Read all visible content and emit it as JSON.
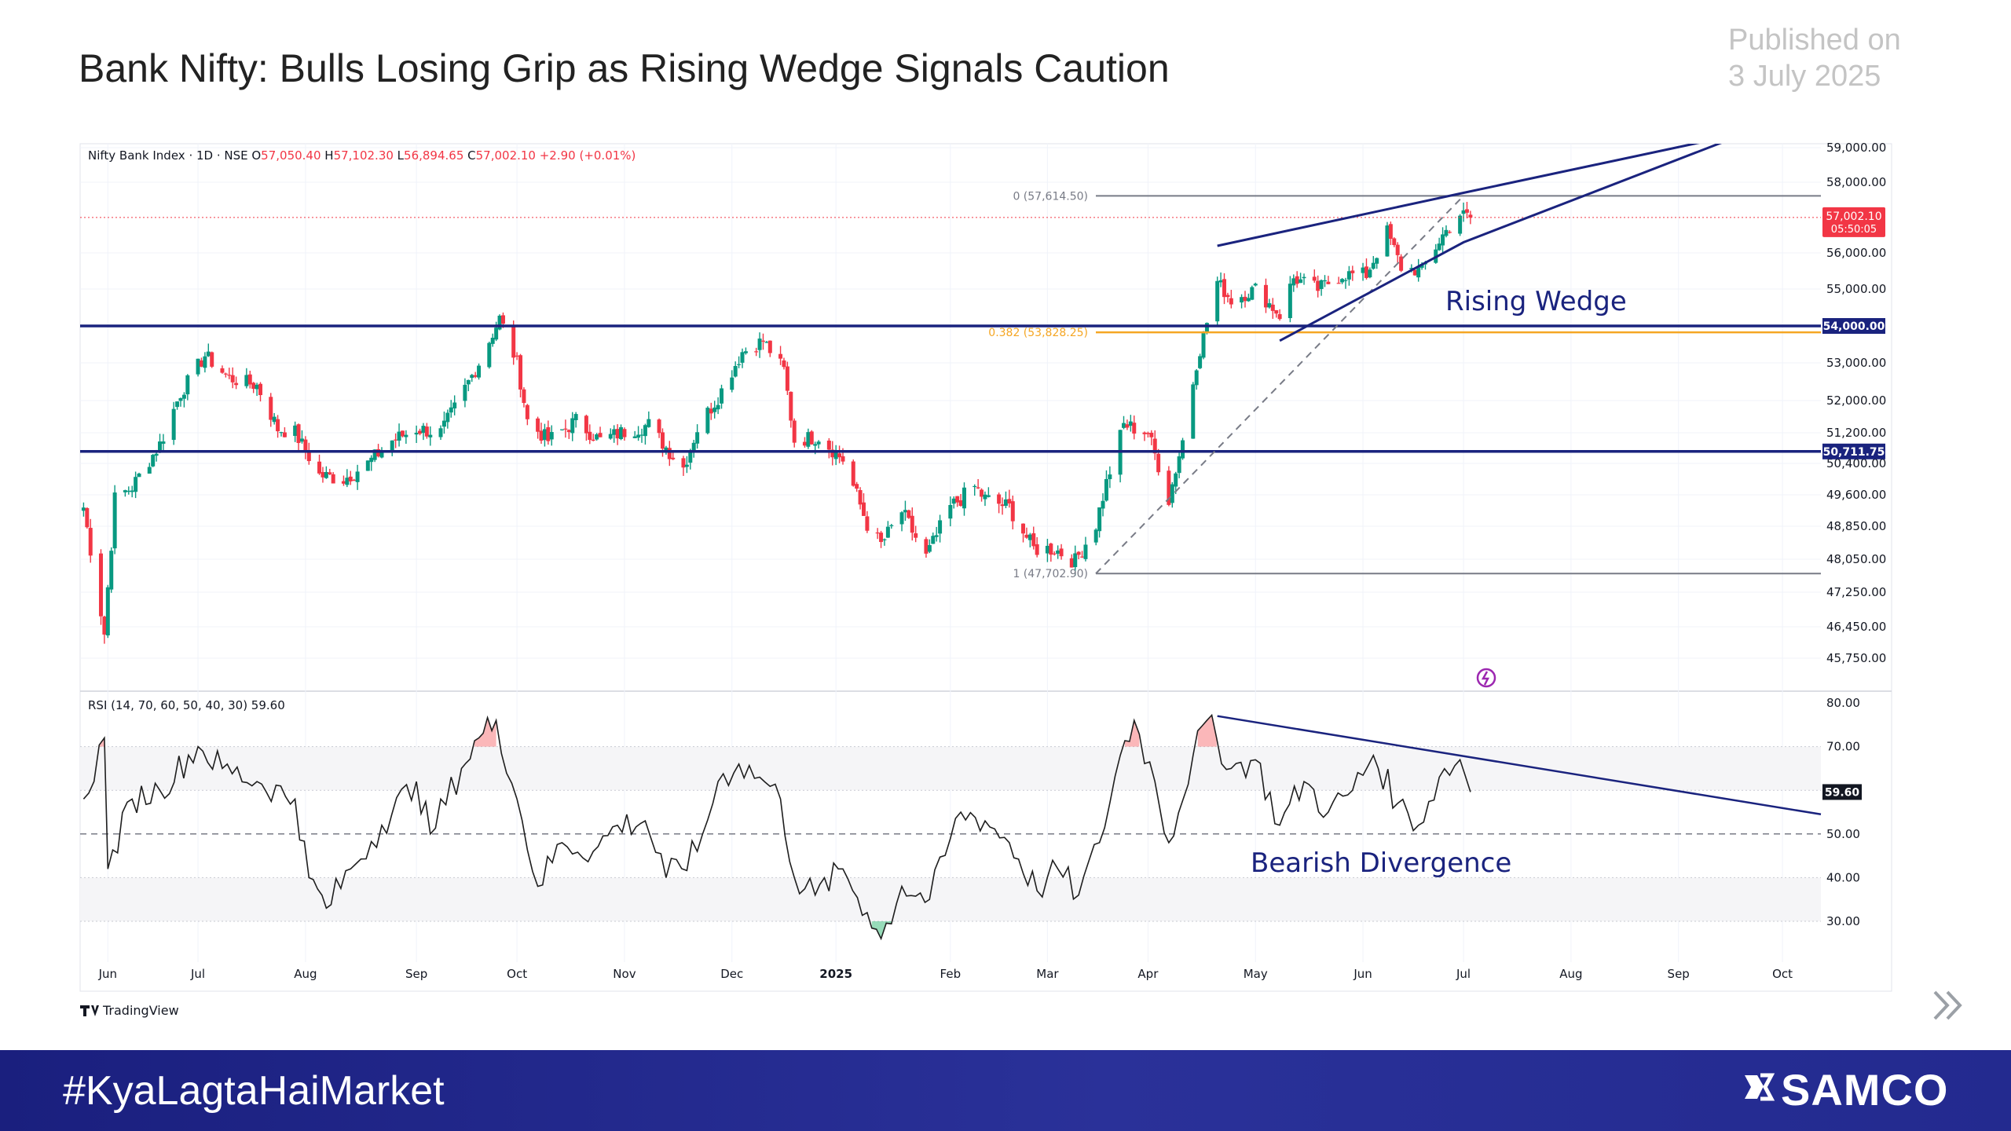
{
  "header": {
    "title": "Bank Nifty: Bulls Losing Grip as Rising Wedge Signals Caution",
    "published_label": "Published  on",
    "published_date": "3 July 2025"
  },
  "footer": {
    "hashtag": "#KyaLagtaHaiMarket",
    "brand": "SAMCO"
  },
  "colors": {
    "up": "#089981",
    "down": "#f23645",
    "navy": "#1a237e",
    "fib_orange": "#f5a623",
    "fib_gray": "#787b86",
    "rsi_line": "#1e1e1e"
  },
  "chart_data": [
    {
      "type": "candlestick",
      "title": "Nifty Bank Index · 1D · NSE",
      "ohlc_header": {
        "open_label": "O",
        "open": "57,050.40",
        "high_label": "H",
        "high": "57,102.30",
        "low_label": "L",
        "low": "56,894.65",
        "close_label": "C",
        "close": "57,002.10",
        "change": "+2.90 (+0.01%)"
      },
      "y_ticks": [
        {
          "value": 59000,
          "label": "59,000.00"
        },
        {
          "value": 58000,
          "label": "58,000.00"
        },
        {
          "value": 56000,
          "label": "56,000.00"
        },
        {
          "value": 55000,
          "label": "55,000.00"
        },
        {
          "value": 53000,
          "label": "53,000.00"
        },
        {
          "value": 52000,
          "label": "52,000.00"
        },
        {
          "value": 51200,
          "label": "51,200.00"
        },
        {
          "value": 50400,
          "label": "50,400.00"
        },
        {
          "value": 49600,
          "label": "49,600.00"
        },
        {
          "value": 48850,
          "label": "48,850.00"
        },
        {
          "value": 48050,
          "label": "48,050.00"
        },
        {
          "value": 47250,
          "label": "47,250.00"
        },
        {
          "value": 46450,
          "label": "46,450.00"
        },
        {
          "value": 45750,
          "label": "45,750.00"
        }
      ],
      "x_ticks": [
        "Jun",
        "Jul",
        "Aug",
        "Sep",
        "Oct",
        "Nov",
        "Dec",
        "2025",
        "Feb",
        "Mar",
        "Apr",
        "May",
        "Jun",
        "Jul",
        "Aug",
        "Sep",
        "Oct"
      ],
      "price_path": [
        [
          "2024-05-29",
          49300
        ],
        [
          "2024-06-04",
          46300
        ],
        [
          "2024-06-07",
          49500
        ],
        [
          "2024-06-12",
          49800
        ],
        [
          "2024-06-20",
          50900
        ],
        [
          "2024-06-26",
          52200
        ],
        [
          "2024-07-03",
          53200
        ],
        [
          "2024-07-10",
          52600
        ],
        [
          "2024-07-18",
          52400
        ],
        [
          "2024-07-24",
          51300
        ],
        [
          "2024-07-29",
          51200
        ],
        [
          "2024-08-05",
          50100
        ],
        [
          "2024-08-12",
          50000
        ],
        [
          "2024-08-19",
          50400
        ],
        [
          "2024-08-26",
          51000
        ],
        [
          "2024-09-02",
          51300
        ],
        [
          "2024-09-09",
          51200
        ],
        [
          "2024-09-13",
          51800
        ],
        [
          "2024-09-20",
          53000
        ],
        [
          "2024-09-26",
          54200
        ],
        [
          "2024-10-01",
          53000
        ],
        [
          "2024-10-04",
          51500
        ],
        [
          "2024-10-10",
          51000
        ],
        [
          "2024-10-18",
          51500
        ],
        [
          "2024-10-25",
          51000
        ],
        [
          "2024-10-31",
          51200
        ],
        [
          "2024-11-08",
          51400
        ],
        [
          "2024-11-14",
          50700
        ],
        [
          "2024-11-18",
          50300
        ],
        [
          "2024-11-22",
          51300
        ],
        [
          "2024-11-28",
          52100
        ],
        [
          "2024-12-05",
          53300
        ],
        [
          "2024-12-11",
          53600
        ],
        [
          "2024-12-17",
          52800
        ],
        [
          "2024-12-20",
          51000
        ],
        [
          "2024-12-27",
          51100
        ],
        [
          "2025-01-03",
          50500
        ],
        [
          "2025-01-10",
          48900
        ],
        [
          "2025-01-14",
          48400
        ],
        [
          "2025-01-20",
          49200
        ],
        [
          "2025-01-27",
          48100
        ],
        [
          "2025-02-03",
          49300
        ],
        [
          "2025-02-10",
          49800
        ],
        [
          "2025-02-13",
          49500
        ],
        [
          "2025-02-20",
          49300
        ],
        [
          "2025-02-27",
          48300
        ],
        [
          "2025-03-05",
          48300
        ],
        [
          "2025-03-11",
          48000
        ],
        [
          "2025-03-17",
          48900
        ],
        [
          "2025-03-20",
          49900
        ],
        [
          "2025-03-25",
          51400
        ],
        [
          "2025-04-01",
          51200
        ],
        [
          "2025-04-07",
          49500
        ],
        [
          "2025-04-11",
          51000
        ],
        [
          "2025-04-15",
          53000
        ],
        [
          "2025-04-21",
          55200
        ],
        [
          "2025-04-25",
          54700
        ],
        [
          "2025-05-02",
          55000
        ],
        [
          "2025-05-09",
          54300
        ],
        [
          "2025-05-13",
          55300
        ],
        [
          "2025-05-20",
          55000
        ],
        [
          "2025-05-27",
          55400
        ],
        [
          "2025-06-03",
          55400
        ],
        [
          "2025-06-09",
          56600
        ],
        [
          "2025-06-13",
          55600
        ],
        [
          "2025-06-19",
          55500
        ],
        [
          "2025-06-25",
          56500
        ],
        [
          "2025-06-30",
          57100
        ],
        [
          "2025-07-03",
          57002
        ]
      ],
      "last_price_label": "57,002.10",
      "countdown_label": "05:50:05",
      "horizontal_levels": [
        {
          "value": 54000,
          "label": "54,000.00"
        },
        {
          "value": 50711.75,
          "label": "50,711.75"
        }
      ],
      "fibonacci": [
        {
          "ratio": "0",
          "value": 57614.5,
          "label": "0 (57,614.50)"
        },
        {
          "ratio": "0.382",
          "value": 53828.25,
          "label": "0.382 (53,828.25)"
        },
        {
          "ratio": "1",
          "value": 47702.9,
          "label": "1 (47,702.90)"
        }
      ],
      "wedge": {
        "upper": [
          [
            "2025-04-21",
            56200
          ],
          [
            "2025-07-01",
            57700
          ],
          [
            "2025-10-03",
            59700
          ]
        ],
        "lower": [
          [
            "2025-05-09",
            53600
          ],
          [
            "2025-07-01",
            56300
          ],
          [
            "2025-09-20",
            59400
          ]
        ],
        "annotation": "Rising Wedge"
      }
    },
    {
      "type": "line",
      "title": "RSI (14, 70, 60, 50, 40, 30)",
      "current_value": "59.60",
      "ylim": [
        25,
        82
      ],
      "y_ticks": [
        {
          "value": 80,
          "label": "80.00"
        },
        {
          "value": 70,
          "label": "70.00"
        },
        {
          "value": 50,
          "label": "50.00"
        },
        {
          "value": 40,
          "label": "40.00"
        },
        {
          "value": 30,
          "label": "30.00"
        }
      ],
      "bands": {
        "overbought": 70,
        "upper_mid": 60,
        "mid": 50,
        "lower_mid": 40,
        "oversold": 30
      },
      "series_path": [
        [
          "2024-05-29",
          58
        ],
        [
          "2024-06-04",
          72
        ],
        [
          "2024-06-05",
          42
        ],
        [
          "2024-06-12",
          58
        ],
        [
          "2024-06-20",
          60
        ],
        [
          "2024-07-01",
          70
        ],
        [
          "2024-07-08",
          65
        ],
        [
          "2024-07-18",
          62
        ],
        [
          "2024-07-29",
          58
        ],
        [
          "2024-08-02",
          40
        ],
        [
          "2024-08-07",
          33
        ],
        [
          "2024-08-14",
          42
        ],
        [
          "2024-08-23",
          52
        ],
        [
          "2024-09-02",
          62
        ],
        [
          "2024-09-06",
          50
        ],
        [
          "2024-09-15",
          65
        ],
        [
          "2024-09-20",
          72
        ],
        [
          "2024-09-25",
          76
        ],
        [
          "2024-10-01",
          58
        ],
        [
          "2024-10-07",
          38
        ],
        [
          "2024-10-14",
          48
        ],
        [
          "2024-10-23",
          46
        ],
        [
          "2024-10-30",
          52
        ],
        [
          "2024-11-07",
          53
        ],
        [
          "2024-11-13",
          40
        ],
        [
          "2024-11-22",
          46
        ],
        [
          "2024-11-28",
          62
        ],
        [
          "2024-12-04",
          66
        ],
        [
          "2024-12-10",
          63
        ],
        [
          "2024-12-16",
          58
        ],
        [
          "2024-12-20",
          40
        ],
        [
          "2024-12-26",
          36
        ],
        [
          "2025-01-03",
          42
        ],
        [
          "2025-01-10",
          32
        ],
        [
          "2025-01-14",
          26
        ],
        [
          "2025-01-20",
          38
        ],
        [
          "2025-01-28",
          35
        ],
        [
          "2025-02-06",
          55
        ],
        [
          "2025-02-13",
          53
        ],
        [
          "2025-02-20",
          48
        ],
        [
          "2025-02-28",
          37
        ],
        [
          "2025-03-06",
          42
        ],
        [
          "2025-03-12",
          36
        ],
        [
          "2025-03-18",
          48
        ],
        [
          "2025-03-24",
          68
        ],
        [
          "2025-03-28",
          76
        ],
        [
          "2025-04-03",
          62
        ],
        [
          "2025-04-07",
          48
        ],
        [
          "2025-04-14",
          68
        ],
        [
          "2025-04-18",
          76
        ],
        [
          "2025-04-25",
          65
        ],
        [
          "2025-05-02",
          67
        ],
        [
          "2025-05-09",
          52
        ],
        [
          "2025-05-16",
          62
        ],
        [
          "2025-05-23",
          55
        ],
        [
          "2025-05-30",
          60
        ],
        [
          "2025-06-05",
          68
        ],
        [
          "2025-06-12",
          57
        ],
        [
          "2025-06-18",
          52
        ],
        [
          "2025-06-24",
          63
        ],
        [
          "2025-06-30",
          67
        ],
        [
          "2025-07-03",
          59.6
        ]
      ],
      "divergence_line": [
        [
          "2025-04-21",
          77
        ],
        [
          "2025-10-03",
          54.5
        ]
      ],
      "annotation": "Bearish Divergence"
    }
  ],
  "watermark": "TradingView"
}
